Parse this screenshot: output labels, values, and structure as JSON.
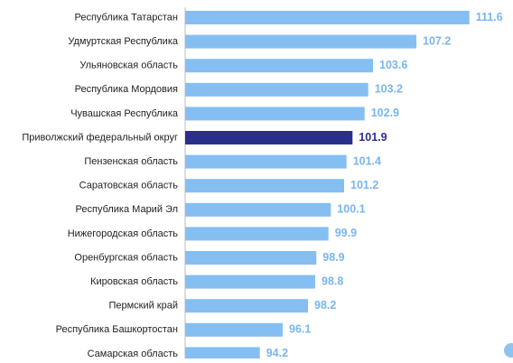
{
  "chart_data": {
    "type": "bar",
    "orientation": "horizontal",
    "categories": [
      "Республика Татарстан",
      "Удмуртская Республика",
      "Ульяновская область",
      "Республика Мордовия",
      "Чувашская Республика",
      "Приволжский федеральный округ",
      "Пензенская область",
      "Саратовская область",
      "Республика Марий Эл",
      "Нижегородская область",
      "Оренбургская область",
      "Кировская область",
      "Пермский край",
      "Республика Башкортостан",
      "Самарская область"
    ],
    "values": [
      111.6,
      107.2,
      103.6,
      103.2,
      102.9,
      101.9,
      101.4,
      101.2,
      100.1,
      99.9,
      98.9,
      98.8,
      98.2,
      96.1,
      94.2
    ],
    "value_labels": [
      "111.6",
      "107.2",
      "103.6",
      "103.2",
      "102.9",
      "101.9",
      "101.4",
      "101.2",
      "100.1",
      "99.9",
      "98.9",
      "98.8",
      "98.2",
      "96.1",
      "94.2"
    ],
    "highlight_category": "Приволжский федеральный округ",
    "xlim": [
      88,
      112
    ],
    "grid": false,
    "legend": "none",
    "title": "",
    "xlabel": "",
    "ylabel": "",
    "colors": {
      "bar": "#85bff2",
      "bar_highlight": "#2b2f8c",
      "value_label": "#79b6ee",
      "value_label_highlight": "#2b2f8c",
      "axis": "#bbbbbb",
      "text": "#222222",
      "corner_dot": "#8fc3ef"
    }
  }
}
